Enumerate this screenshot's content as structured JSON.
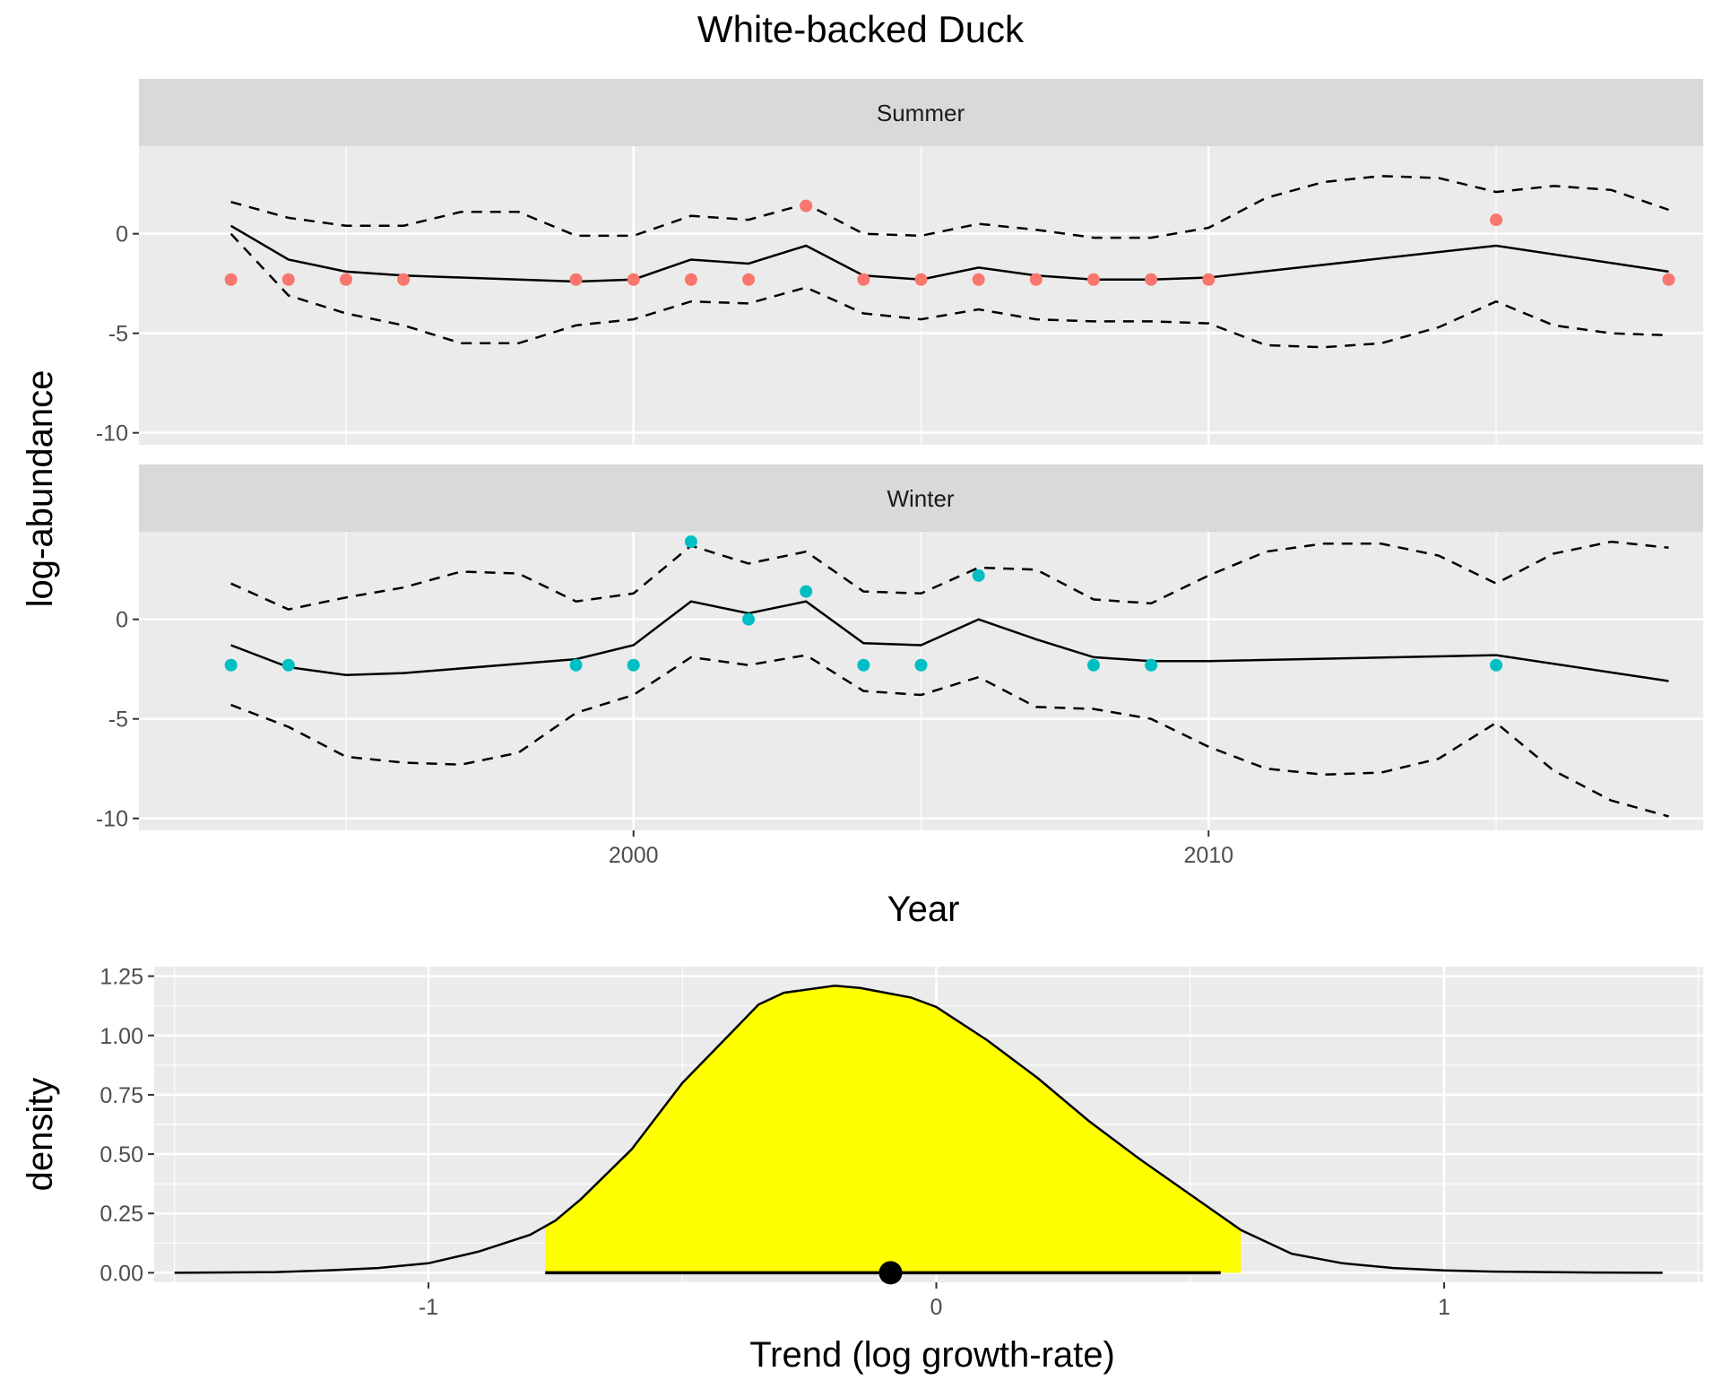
{
  "title": "White-backed Duck",
  "colors": {
    "panel_bg": "#EBEBEB",
    "grid": "#FFFFFF",
    "strip_bg": "#D9D9D9",
    "summer_points": "#F8766D",
    "winter_points": "#00BFC4",
    "density_fill": "#FFFF00",
    "line": "#000000"
  },
  "chart_data": [
    {
      "type": "line",
      "facet": "Summer",
      "xlabel": "Year",
      "ylabel": "log-abundance",
      "xlim": [
        1991.4,
        2018.6
      ],
      "ylim": [
        -10.6,
        4.4
      ],
      "x_ticks": [
        2000,
        2010
      ],
      "y_ticks": [
        0,
        -5,
        -10
      ],
      "grid": true,
      "series": [
        {
          "role": "estimate",
          "x": [
            1993,
            1994,
            1995,
            1996,
            1997,
            1998,
            1999,
            2000,
            2001,
            2002,
            2003,
            2004,
            2005,
            2006,
            2007,
            2008,
            2009,
            2010,
            2015,
            2018
          ],
          "values": [
            0.4,
            -1.3,
            -1.9,
            -2.1,
            -2.2,
            -2.3,
            -2.4,
            -2.3,
            -1.3,
            -1.5,
            -0.6,
            -2.1,
            -2.3,
            -1.7,
            -2.1,
            -2.3,
            -2.3,
            -2.2,
            -0.6,
            -1.9
          ]
        },
        {
          "role": "upper",
          "x": [
            1993,
            1994,
            1995,
            1996,
            1997,
            1998,
            1999,
            2000,
            2001,
            2002,
            2003,
            2004,
            2005,
            2006,
            2007,
            2008,
            2009,
            2010,
            2011,
            2012,
            2013,
            2014,
            2015,
            2016,
            2017,
            2018
          ],
          "values": [
            1.6,
            0.8,
            0.4,
            0.4,
            1.1,
            1.1,
            -0.1,
            -0.1,
            0.9,
            0.7,
            1.5,
            0.0,
            -0.1,
            0.5,
            0.2,
            -0.2,
            -0.2,
            0.3,
            1.8,
            2.6,
            2.9,
            2.8,
            2.1,
            2.4,
            2.2,
            1.2
          ]
        },
        {
          "role": "lower",
          "x": [
            1993,
            1994,
            1995,
            1996,
            1997,
            1998,
            1999,
            2000,
            2001,
            2002,
            2003,
            2004,
            2005,
            2006,
            2007,
            2008,
            2009,
            2010,
            2011,
            2012,
            2013,
            2014,
            2015,
            2016,
            2017,
            2018
          ],
          "values": [
            0.0,
            -3.1,
            -4.0,
            -4.6,
            -5.5,
            -5.5,
            -4.6,
            -4.3,
            -3.4,
            -3.5,
            -2.7,
            -4.0,
            -4.3,
            -3.8,
            -4.3,
            -4.4,
            -4.4,
            -4.5,
            -5.6,
            -5.7,
            -5.5,
            -4.7,
            -3.4,
            -4.6,
            -5.0,
            -5.1
          ]
        },
        {
          "role": "observed",
          "x": [
            1993,
            1994,
            1995,
            1996,
            1999,
            2000,
            2001,
            2002,
            2003,
            2004,
            2005,
            2006,
            2007,
            2008,
            2009,
            2010,
            2015,
            2018
          ],
          "values": [
            -2.3,
            -2.3,
            -2.3,
            -2.3,
            -2.3,
            -2.3,
            -2.3,
            -2.3,
            1.4,
            -2.3,
            -2.3,
            -2.3,
            -2.3,
            -2.3,
            -2.3,
            -2.3,
            0.7,
            -2.3
          ]
        }
      ]
    },
    {
      "type": "line",
      "facet": "Winter",
      "xlabel": "Year",
      "ylabel": "log-abundance",
      "xlim": [
        1991.4,
        2018.6
      ],
      "ylim": [
        -10.6,
        4.4
      ],
      "x_ticks": [
        2000,
        2010
      ],
      "x_tick_labels": [
        "2000",
        "2010"
      ],
      "y_ticks": [
        0,
        -5,
        -10
      ],
      "grid": true,
      "series": [
        {
          "role": "estimate",
          "x": [
            1993,
            1994,
            1995,
            1996,
            1999,
            2000,
            2001,
            2002,
            2003,
            2004,
            2005,
            2006,
            2007,
            2008,
            2009,
            2010,
            2015,
            2018
          ],
          "values": [
            -1.3,
            -2.4,
            -2.8,
            -2.7,
            -2.0,
            -1.3,
            0.9,
            0.3,
            0.9,
            -1.2,
            -1.3,
            0.0,
            -1.0,
            -1.9,
            -2.1,
            -2.1,
            -1.8,
            -3.1
          ]
        },
        {
          "role": "upper",
          "x": [
            1993,
            1994,
            1995,
            1996,
            1997,
            1998,
            1999,
            2000,
            2001,
            2002,
            2003,
            2004,
            2005,
            2006,
            2007,
            2008,
            2009,
            2010,
            2011,
            2012,
            2013,
            2014,
            2015,
            2016,
            2017,
            2018
          ],
          "values": [
            1.8,
            0.5,
            1.1,
            1.6,
            2.4,
            2.3,
            0.9,
            1.3,
            3.7,
            2.8,
            3.4,
            1.4,
            1.3,
            2.6,
            2.5,
            1.0,
            0.8,
            2.2,
            3.4,
            3.8,
            3.8,
            3.2,
            1.8,
            3.3,
            3.9,
            3.6
          ]
        },
        {
          "role": "lower",
          "x": [
            1993,
            1994,
            1995,
            1996,
            1997,
            1998,
            1999,
            2000,
            2001,
            2002,
            2003,
            2004,
            2005,
            2006,
            2007,
            2008,
            2009,
            2010,
            2011,
            2012,
            2013,
            2014,
            2015,
            2016,
            2017,
            2018
          ],
          "values": [
            -4.3,
            -5.4,
            -6.9,
            -7.2,
            -7.3,
            -6.7,
            -4.7,
            -3.8,
            -1.9,
            -2.3,
            -1.8,
            -3.6,
            -3.8,
            -2.9,
            -4.4,
            -4.5,
            -5.0,
            -6.4,
            -7.5,
            -7.8,
            -7.7,
            -7.0,
            -5.2,
            -7.6,
            -9.1,
            -9.9
          ]
        },
        {
          "role": "observed",
          "x": [
            1993,
            1994,
            1999,
            2000,
            2001,
            2002,
            2003,
            2004,
            2005,
            2006,
            2008,
            2009,
            2015
          ],
          "values": [
            -2.3,
            -2.3,
            -2.3,
            -2.3,
            3.9,
            0.0,
            1.4,
            -2.3,
            -2.3,
            2.2,
            -2.3,
            -2.3,
            -2.3
          ]
        }
      ]
    },
    {
      "type": "area",
      "xlabel": "Trend (log growth-rate)",
      "ylabel": "density",
      "xlim": [
        -1.54,
        1.51
      ],
      "ylim": [
        -0.04,
        1.29
      ],
      "x_ticks": [
        -1,
        0,
        1
      ],
      "x_tick_labels": [
        "-1",
        "0",
        "1"
      ],
      "y_ticks": [
        0.0,
        0.25,
        0.5,
        0.75,
        1.0,
        1.25
      ],
      "y_tick_labels": [
        "0.00",
        "0.25",
        "0.50",
        "0.75",
        "1.00",
        "1.25"
      ],
      "grid": true,
      "density": {
        "x": [
          -1.5,
          -1.3,
          -1.2,
          -1.1,
          -1.0,
          -0.9,
          -0.8,
          -0.75,
          -0.7,
          -0.6,
          -0.5,
          -0.4,
          -0.35,
          -0.3,
          -0.2,
          -0.15,
          -0.1,
          -0.05,
          0.0,
          0.1,
          0.2,
          0.3,
          0.4,
          0.5,
          0.6,
          0.7,
          0.8,
          0.9,
          1.0,
          1.1,
          1.2,
          1.3,
          1.43
        ],
        "values": [
          0.0,
          0.003,
          0.01,
          0.02,
          0.04,
          0.09,
          0.16,
          0.22,
          0.31,
          0.52,
          0.8,
          1.02,
          1.13,
          1.18,
          1.21,
          1.2,
          1.18,
          1.16,
          1.12,
          0.98,
          0.82,
          0.64,
          0.48,
          0.33,
          0.18,
          0.08,
          0.04,
          0.02,
          0.01,
          0.005,
          0.003,
          0.001,
          0.0
        ]
      },
      "interval": {
        "low": -0.77,
        "high": 0.56
      },
      "point_estimate": -0.09,
      "fill_from": -0.77,
      "fill_to": 0.6
    }
  ]
}
